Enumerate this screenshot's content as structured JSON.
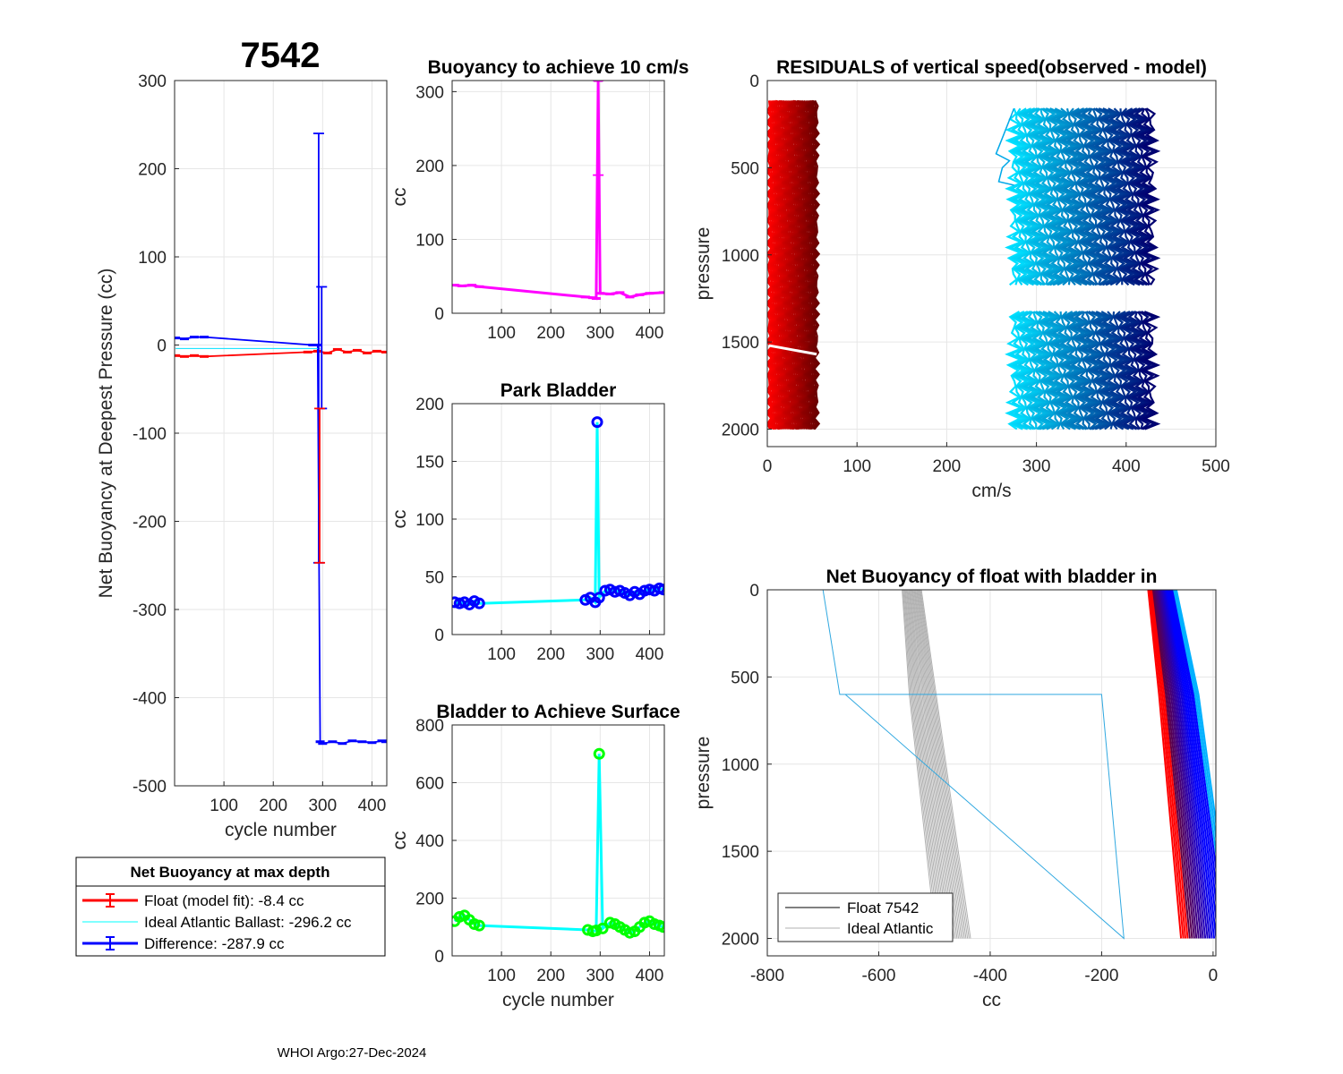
{
  "figure": {
    "main_title": "7542",
    "footer": "WHOI Argo:27-Dec-2024",
    "colors": {
      "red": "#ff0000",
      "blue": "#0000ff",
      "cyan": "#00e0ff",
      "magenta": "#ff00ff",
      "green": "#00ff00",
      "gray": "#b0b0b0",
      "grid": "#e6e6e6"
    }
  },
  "legend_main": {
    "title": "Net Buoyancy at max depth",
    "items": [
      {
        "label": "Float (model fit):  -8.4 cc",
        "color": "#ff0000",
        "style": "errorbar"
      },
      {
        "label": "Ideal Atlantic Ballast: -296.2 cc",
        "color": "#00ffff",
        "style": "line"
      },
      {
        "label": "Difference: -287.9 cc",
        "color": "#0000ff",
        "style": "errorbar"
      }
    ]
  },
  "legend_netbuoy": {
    "items": [
      {
        "label": "Float 7542",
        "color": "#000000"
      },
      {
        "label": "Ideal Atlantic",
        "color": "#b0b0b0"
      }
    ]
  },
  "chart_data": [
    {
      "id": "net-buoyancy-deepest",
      "type": "line",
      "title": "",
      "xlabel": "cycle number",
      "ylabel": "Net Buoyancy at Deepest Pressure (cc)",
      "xlim": [
        0,
        430
      ],
      "ylim": [
        -500,
        300
      ],
      "xticks": [
        100,
        200,
        300,
        400
      ],
      "yticks": [
        -500,
        -400,
        -300,
        -200,
        -100,
        0,
        100,
        200,
        300
      ],
      "series": [
        {
          "name": "Float (model fit)",
          "color": "#ff0000",
          "x": [
            2,
            20,
            40,
            60,
            270,
            290,
            310,
            330,
            350,
            370,
            390,
            410,
            428
          ],
          "y": [
            -12,
            -13,
            -12,
            -13,
            -8,
            -7,
            -9,
            -5,
            -8,
            -6,
            -9,
            -7,
            -8
          ]
        },
        {
          "name": "Difference",
          "color": "#0000ff",
          "x": [
            2,
            20,
            40,
            60,
            280,
            290,
            295,
            300,
            320,
            340,
            360,
            380,
            400,
            420,
            428
          ],
          "y": [
            8,
            7,
            9,
            9,
            0,
            0,
            -450,
            -452,
            -450,
            -452,
            -449,
            -450,
            -451,
            -449,
            -450
          ]
        },
        {
          "name": "Ideal Atlantic Ballast",
          "color": "#00e0ff",
          "x": [
            2,
            295
          ],
          "y": [
            -4,
            -4
          ]
        }
      ],
      "errorbars": [
        {
          "x": 292,
          "low": -247,
          "high": 240,
          "color": "#0000ff"
        },
        {
          "x": 298,
          "low": -72,
          "high": 66,
          "color": "#0000ff"
        },
        {
          "x": 294,
          "low": -247,
          "high": -72,
          "color": "#ff0000"
        }
      ]
    },
    {
      "id": "buoyancy-10cms",
      "type": "line",
      "title": "Buoyancy to achieve 10 cm/s",
      "xlabel": "",
      "ylabel": "cc",
      "xlim": [
        0,
        430
      ],
      "ylim": [
        0,
        315
      ],
      "xticks": [
        100,
        200,
        300,
        400
      ],
      "yticks": [
        0,
        100,
        200,
        300
      ],
      "series": [
        {
          "name": "buoyancy",
          "color": "#ff00ff",
          "x": [
            5,
            20,
            40,
            55,
            270,
            285,
            292,
            296,
            300,
            320,
            340,
            360,
            380,
            400,
            428
          ],
          "y": [
            38,
            37,
            38,
            36,
            22,
            21,
            20,
            315,
            27,
            26,
            28,
            22,
            25,
            27,
            28
          ]
        }
      ],
      "errorbars": [
        {
          "x": 296,
          "low": 187,
          "high": 315,
          "color": "#ff00ff"
        }
      ]
    },
    {
      "id": "park-bladder",
      "type": "line",
      "title": "Park Bladder",
      "xlabel": "",
      "ylabel": "cc",
      "xlim": [
        0,
        430
      ],
      "ylim": [
        0,
        200
      ],
      "xticks": [
        100,
        200,
        300,
        400
      ],
      "yticks": [
        0,
        50,
        100,
        150,
        200
      ],
      "series": [
        {
          "name": "park",
          "color": "#00ffff",
          "marker_color": "#0000ff",
          "x": [
            5,
            15,
            25,
            35,
            45,
            55,
            270,
            280,
            290,
            294,
            298,
            310,
            320,
            330,
            340,
            350,
            360,
            370,
            380,
            390,
            400,
            410,
            420,
            428
          ],
          "y": [
            28,
            27,
            28,
            26,
            29,
            27,
            30,
            32,
            28,
            184,
            32,
            38,
            39,
            37,
            38,
            36,
            34,
            37,
            35,
            38,
            39,
            38,
            40,
            39
          ]
        }
      ]
    },
    {
      "id": "bladder-surface",
      "type": "line",
      "title": "Bladder to Achieve Surface",
      "xlabel": "cycle number",
      "ylabel": "cc",
      "xlim": [
        0,
        430
      ],
      "ylim": [
        0,
        800
      ],
      "xticks": [
        100,
        200,
        300,
        400
      ],
      "yticks": [
        0,
        200,
        400,
        600,
        800
      ],
      "series": [
        {
          "name": "surface",
          "color": "#00ffff",
          "marker_color": "#00ff00",
          "x": [
            5,
            15,
            25,
            35,
            45,
            55,
            275,
            285,
            292,
            298,
            305,
            320,
            330,
            340,
            350,
            360,
            370,
            380,
            390,
            400,
            410,
            420,
            428
          ],
          "y": [
            120,
            135,
            140,
            125,
            110,
            105,
            90,
            85,
            88,
            700,
            95,
            115,
            110,
            100,
            90,
            80,
            85,
            100,
            115,
            120,
            110,
            105,
            100
          ]
        }
      ]
    },
    {
      "id": "residuals",
      "type": "line",
      "title": "RESIDUALS of vertical speed(observed - model)",
      "xlabel": "cm/s",
      "ylabel": "pressure",
      "xlim": [
        0,
        500
      ],
      "ylim": [
        0,
        2100
      ],
      "y_reversed": true,
      "xticks": [
        0,
        100,
        200,
        300,
        400,
        500
      ],
      "yticks": [
        0,
        500,
        1000,
        1500,
        2000
      ],
      "bands": [
        {
          "x0": 2,
          "x1": 55,
          "p0": 115,
          "p1": 2000,
          "color_from": "#ff0000",
          "color_to": "#6a0000"
        },
        {
          "x0": 275,
          "x1": 428,
          "p0": 160,
          "p1": 2000,
          "color_from": "#00e0ff",
          "color_to": "#000070",
          "gap": [
            1180,
            1300
          ]
        }
      ],
      "outlier_trace": {
        "color": "#00a8e8",
        "x": [
          275,
          262,
          255,
          270,
          262,
          258,
          275
        ],
        "p": [
          160,
          330,
          420,
          460,
          500,
          580,
          600
        ]
      },
      "white_gap_line": {
        "x0": 2,
        "x1": 55,
        "p0": 1520,
        "p1": 1570
      }
    },
    {
      "id": "net-buoyancy-bladder-in",
      "type": "line",
      "title": "Net Buoyancy of float with bladder in",
      "xlabel": "cc",
      "ylabel": "pressure",
      "xlim": [
        -800,
        5
      ],
      "ylim": [
        0,
        2100
      ],
      "y_reversed": true,
      "xticks": [
        -800,
        -600,
        -400,
        -200,
        0
      ],
      "yticks": [
        0,
        500,
        1000,
        1500,
        2000
      ],
      "series": [
        {
          "name": "Ideal Atlantic bundle",
          "color": "#b0b0b0",
          "x": [
            -540,
            -520,
            -465
          ],
          "p": [
            0,
            600,
            2000
          ]
        },
        {
          "name": "Ideal Atlantic reference",
          "color": "#30a8e0",
          "x": [
            -700,
            -670,
            -200,
            -160,
            -660,
            -200
          ],
          "p": [
            0,
            600,
            600,
            2000,
            600,
            600
          ]
        },
        {
          "name": "Float 7542 bundle",
          "color": "#0000c0",
          "x": [
            -90,
            -60,
            -10
          ],
          "p": [
            0,
            600,
            2000
          ]
        }
      ]
    }
  ]
}
